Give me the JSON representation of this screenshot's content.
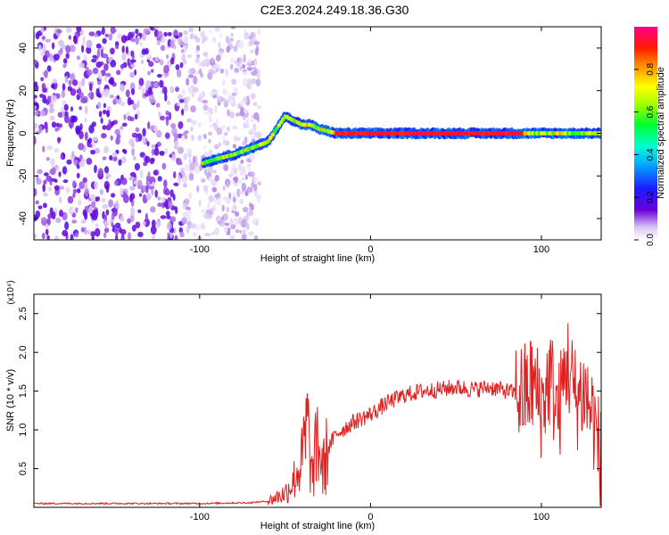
{
  "title": "C2E3.2024.249.18.36.G30",
  "chart_data": [
    {
      "type": "heatmap",
      "xlabel": "Height of straight line (km)",
      "ylabel": "Frequency (Hz)",
      "xlim": [
        -197,
        135
      ],
      "ylim": [
        -50,
        50
      ],
      "xticks": [
        -100,
        0,
        100
      ],
      "yticks": [
        -40,
        -20,
        0,
        20,
        40
      ],
      "colorbar": {
        "label": "Normalized spectral amplitude",
        "range": [
          0,
          1
        ],
        "ticks": [
          0.0,
          0.2,
          0.4,
          0.6,
          0.8
        ]
      },
      "ridge": {
        "x": [
          -98,
          -90,
          -80,
          -70,
          -60,
          -55,
          -50,
          -45,
          -40,
          -35,
          -30,
          -25,
          -20,
          0,
          20,
          40,
          60,
          80,
          100,
          120,
          135
        ],
        "y": [
          -14,
          -12,
          -10,
          -7,
          -4,
          2,
          8,
          6,
          4,
          4,
          2,
          1,
          0,
          0,
          0,
          0,
          0,
          0,
          0,
          0,
          0
        ]
      },
      "noise_region_x": [
        -197,
        -65
      ]
    },
    {
      "type": "line",
      "xlabel": "Height of straight line (km)",
      "ylabel": "SNR (10 * v/v)",
      "y_multiplier": "(x10⁴)",
      "xlim": [
        -197,
        135
      ],
      "ylim": [
        0,
        2.75
      ],
      "xticks": [
        -100,
        0,
        100
      ],
      "yticks": [
        0.5,
        1.0,
        1.5,
        2.0,
        2.5
      ],
      "series": [
        {
          "color": "#e02020",
          "x": [
            -197,
            -150,
            -100,
            -70,
            -60,
            -50,
            -45,
            -40,
            -37,
            -34,
            -31,
            -28,
            -25,
            -20,
            -10,
            0,
            10,
            20,
            30,
            40,
            50,
            60,
            70,
            80,
            90,
            95,
            100,
            105,
            110,
            115,
            120,
            125,
            130,
            135
          ],
          "y": [
            0.05,
            0.05,
            0.05,
            0.06,
            0.08,
            0.18,
            0.35,
            0.6,
            1.05,
            0.35,
            0.9,
            0.45,
            0.75,
            0.95,
            1.1,
            1.2,
            1.35,
            1.45,
            1.5,
            1.52,
            1.55,
            1.52,
            1.55,
            1.5,
            1.45,
            1.6,
            1.3,
            1.7,
            1.2,
            1.9,
            1.4,
            1.5,
            1.2,
            0.6
          ]
        }
      ]
    }
  ]
}
